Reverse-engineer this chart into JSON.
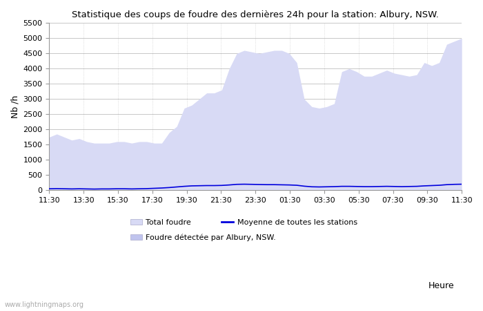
{
  "title": "Statistique des coups de foudre des dernières 24h pour la station: Albury, NSW.",
  "ylabel": "Nb /h",
  "xlabel": "Heure",
  "watermark": "www.lightningmaps.org",
  "xlim_labels": [
    "11:30",
    "13:30",
    "15:30",
    "17:30",
    "19:30",
    "21:30",
    "23:30",
    "01:30",
    "03:30",
    "05:30",
    "07:30",
    "09:30",
    "11:30"
  ],
  "ylim": [
    0,
    5500
  ],
  "yticks": [
    0,
    500,
    1000,
    1500,
    2000,
    2500,
    3000,
    3500,
    4000,
    4500,
    5000,
    5500
  ],
  "bg_color": "#ffffff",
  "plot_bg_color": "#ffffff",
  "grid_color": "#c8c8c8",
  "fill_total_color": "#d8daf5",
  "fill_albury_color": "#c0c4ee",
  "line_moyenne_color": "#0000dd",
  "legend_total": "Total foudre",
  "legend_moyenne": "Moyenne de toutes les stations",
  "legend_albury": "Foudre détectée par Albury, NSW.",
  "total_foudre": [
    1750,
    1850,
    1750,
    1650,
    1700,
    1600,
    1550,
    1550,
    1550,
    1600,
    1600,
    1550,
    1600,
    1600,
    1550,
    1550,
    1900,
    2100,
    2700,
    2800,
    3000,
    3200,
    3200,
    3300,
    4000,
    4500,
    4600,
    4550,
    4500,
    4550,
    4600,
    4600,
    4500,
    4200,
    3000,
    2750,
    2700,
    2750,
    2850,
    3900,
    4000,
    3900,
    3750,
    3750,
    3850,
    3950,
    3850,
    3800,
    3750,
    3800,
    4200,
    4100,
    4200,
    4800,
    4900,
    5000
  ],
  "moyenne_foudre": [
    50,
    55,
    50,
    45,
    50,
    45,
    40,
    45,
    45,
    50,
    50,
    45,
    50,
    55,
    65,
    75,
    90,
    110,
    130,
    145,
    150,
    155,
    155,
    160,
    175,
    195,
    200,
    195,
    190,
    185,
    185,
    180,
    175,
    165,
    135,
    115,
    110,
    115,
    120,
    130,
    130,
    125,
    120,
    120,
    125,
    130,
    125,
    120,
    125,
    130,
    145,
    155,
    165,
    185,
    195,
    200
  ],
  "n_points": 56
}
